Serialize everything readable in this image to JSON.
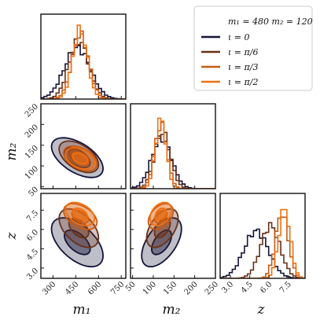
{
  "chart_data": {
    "type": "corner",
    "legend": {
      "title": "m₁ = 480  m₂ = 120",
      "placement": "top-right",
      "entries": [
        "ι = 0",
        "ι = π/6",
        "ι = π/3",
        "ι = π/2"
      ]
    },
    "axis_labels": {
      "m1": "m₁",
      "m2": "m₂",
      "z": "z"
    },
    "ranges": {
      "m1": [
        220,
        780
      ],
      "m2": [
        45,
        250
      ],
      "z": [
        2.2,
        8.8
      ]
    },
    "ticks": {
      "m1": [
        "300",
        "450",
        "600",
        "750"
      ],
      "m2": [
        "50",
        "100",
        "150",
        "200",
        "250"
      ],
      "z": [
        "3.0",
        "4.5",
        "6.0",
        "7.5"
      ]
    },
    "tick_values": {
      "m1": [
        300,
        450,
        600,
        750
      ],
      "m2": [
        50,
        100,
        150,
        200,
        250
      ],
      "z": [
        3.0,
        4.5,
        6.0,
        7.5
      ]
    },
    "series": [
      {
        "name": "ι = 0",
        "color": "#14143a",
        "m1": {
          "mean": 460,
          "sd": 85
        },
        "m2": {
          "mean": 120,
          "sd": 24
        },
        "z": {
          "mean": 5.0,
          "sd": 0.95
        },
        "rho": {
          "m1_m2": -0.55,
          "m1_z": -0.55,
          "m2_z": 0.55
        }
      },
      {
        "name": "ι = π/6",
        "color": "#6a3018",
        "m1": {
          "mean": 470,
          "sd": 65
        },
        "m2": {
          "mean": 122,
          "sd": 19
        },
        "z": {
          "mean": 6.1,
          "sd": 0.75
        },
        "rho": {
          "m1_m2": -0.5,
          "m1_z": -0.5,
          "m2_z": 0.5
        }
      },
      {
        "name": "ι = π/3",
        "color": "#c85a14",
        "m1": {
          "mean": 480,
          "sd": 55
        },
        "m2": {
          "mean": 118,
          "sd": 15
        },
        "z": {
          "mean": 7.0,
          "sd": 0.5
        },
        "rho": {
          "m1_m2": -0.45,
          "m1_z": -0.45,
          "m2_z": 0.4
        }
      },
      {
        "name": "ι = π/2",
        "color": "#f07010",
        "m1": {
          "mean": 478,
          "sd": 48
        },
        "m2": {
          "mean": 118,
          "sd": 13
        },
        "z": {
          "mean": 7.2,
          "sd": 0.45
        },
        "rho": {
          "m1_m2": -0.4,
          "m1_z": -0.4,
          "m2_z": 0.35
        }
      }
    ]
  }
}
